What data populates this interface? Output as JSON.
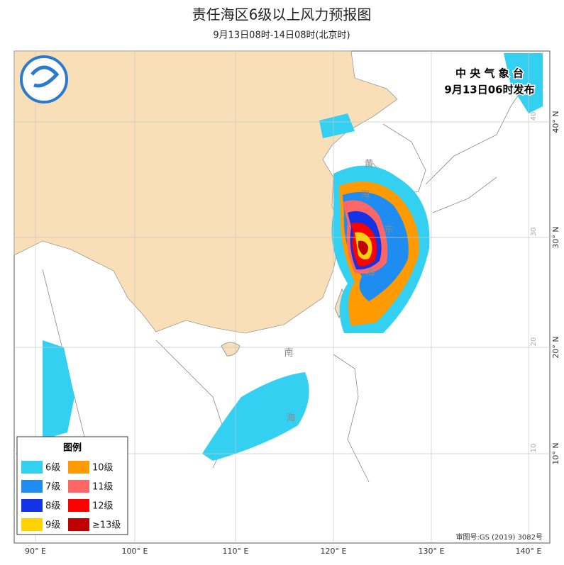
{
  "header": {
    "title": "责任海区6级以上风力预报图",
    "subtitle": "9月13日08时-14日08时(北京时)"
  },
  "issuer": {
    "name": "中 央 气 象 台",
    "time": "9月13日06时发布"
  },
  "legend": {
    "title": "图例",
    "items": [
      {
        "label": "6级",
        "color": "#33d0f2"
      },
      {
        "label": "10级",
        "color": "#ff9a00"
      },
      {
        "label": "7级",
        "color": "#1e8cf0"
      },
      {
        "label": "11级",
        "color": "#ff6666"
      },
      {
        "label": "8级",
        "color": "#1432e6"
      },
      {
        "label": "12级",
        "color": "#ff0000"
      },
      {
        "label": "9级",
        "color": "#ffd200"
      },
      {
        "label": "≥13级",
        "color": "#c00000"
      }
    ]
  },
  "lon_labels": [
    "90° E",
    "100° E",
    "110° E",
    "120° E",
    "130° E",
    "140° E"
  ],
  "lat_labels": [
    "40° N",
    "30° N",
    "20° N",
    "10° N"
  ],
  "inner_lat_labels": [
    "40",
    "30",
    "20",
    "10"
  ],
  "sea_labels": [
    "黄",
    "海",
    "东",
    "海",
    "南",
    "海"
  ],
  "approval": "审图号:GS (2019) 3082号"
}
